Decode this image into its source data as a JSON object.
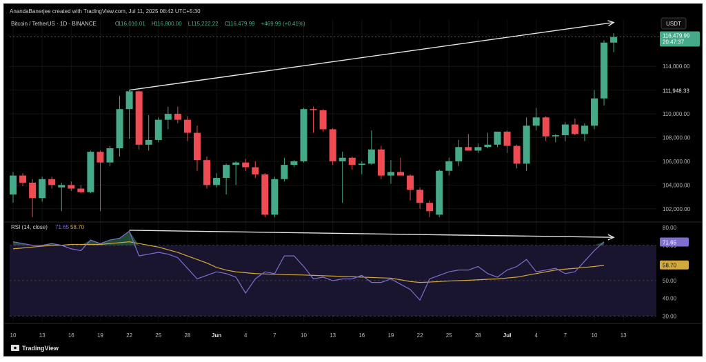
{
  "header": {
    "created_by": "AnandaBanerjee created with TradingView.com, Jul 11, 2025 08:42 UTC+5:30"
  },
  "legend": {
    "symbol": "Bitcoin / TetherUS · 1D · BINANCE",
    "open_label": "O",
    "open": "116,010.01",
    "high_label": "H",
    "high": "116,800.00",
    "low_label": "L",
    "low": "115,222.22",
    "close_label": "C",
    "close": "116,479.99",
    "change": "+469.99 (+0.41%)"
  },
  "price_axis": {
    "currency": "USDT",
    "last_price": "116,479.99",
    "countdown": "20:47:37",
    "marker_price": "111,948.33",
    "ticks": [
      "114,000.00",
      "112,000.00",
      "110,000.00",
      "108,000.00",
      "106,000.00",
      "104,000.00",
      "102,000.00"
    ]
  },
  "rsi_panel": {
    "label": "RSI (14, close)",
    "rsi_value": "71.65",
    "ma_value": "58.70",
    "ticks": [
      "80.00",
      "70.00",
      "60.00",
      "50.00",
      "40.00",
      "30.00"
    ]
  },
  "time_axis": {
    "ticks": [
      "10",
      "13",
      "16",
      "19",
      "22",
      "25",
      "28",
      "Jun",
      "4",
      "7",
      "10",
      "13",
      "16",
      "19",
      "22",
      "25",
      "28",
      "Jul",
      "4",
      "7",
      "10",
      "13"
    ]
  },
  "footer": {
    "brand": "TradingView"
  },
  "colors": {
    "up": "#46a98a",
    "down": "#ee4b52",
    "rsi": "#7e6fd0",
    "rsi_ma": "#d4a93c",
    "background": "#000000"
  },
  "chart_data": {
    "type": "candlestick",
    "y_range": [
      101000,
      117500
    ],
    "rsi_range": [
      27,
      82
    ],
    "candles": [
      {
        "o": 103200,
        "h": 105100,
        "l": 102500,
        "c": 104800
      },
      {
        "o": 104800,
        "h": 105000,
        "l": 103900,
        "c": 104200
      },
      {
        "o": 104200,
        "h": 104500,
        "l": 101300,
        "c": 102900
      },
      {
        "o": 102900,
        "h": 104700,
        "l": 102600,
        "c": 104500
      },
      {
        "o": 104500,
        "h": 104700,
        "l": 103700,
        "c": 104000
      },
      {
        "o": 103800,
        "h": 104200,
        "l": 101800,
        "c": 104000
      },
      {
        "o": 104000,
        "h": 104300,
        "l": 103500,
        "c": 103700
      },
      {
        "o": 103700,
        "h": 104000,
        "l": 103300,
        "c": 103400
      },
      {
        "o": 103400,
        "h": 106900,
        "l": 103300,
        "c": 106800
      },
      {
        "o": 106800,
        "h": 106900,
        "l": 101800,
        "c": 105900
      },
      {
        "o": 105900,
        "h": 107300,
        "l": 105600,
        "c": 107100
      },
      {
        "o": 107100,
        "h": 111500,
        "l": 106400,
        "c": 110400
      },
      {
        "o": 110400,
        "h": 112000,
        "l": 107900,
        "c": 111900
      },
      {
        "o": 111900,
        "h": 111950,
        "l": 107000,
        "c": 107400
      },
      {
        "o": 107400,
        "h": 109900,
        "l": 106900,
        "c": 107800
      },
      {
        "o": 107800,
        "h": 109700,
        "l": 107600,
        "c": 109500
      },
      {
        "o": 109500,
        "h": 110600,
        "l": 108700,
        "c": 110000
      },
      {
        "o": 110000,
        "h": 110600,
        "l": 109200,
        "c": 109500
      },
      {
        "o": 109500,
        "h": 109800,
        "l": 107700,
        "c": 108400
      },
      {
        "o": 108400,
        "h": 109000,
        "l": 105200,
        "c": 106100
      },
      {
        "o": 106100,
        "h": 106400,
        "l": 103700,
        "c": 104000
      },
      {
        "o": 104000,
        "h": 105000,
        "l": 103800,
        "c": 104600
      },
      {
        "o": 104600,
        "h": 105800,
        "l": 103200,
        "c": 105700
      },
      {
        "o": 105700,
        "h": 106000,
        "l": 104000,
        "c": 105900
      },
      {
        "o": 105900,
        "h": 106200,
        "l": 105200,
        "c": 105500
      },
      {
        "o": 105500,
        "h": 106000,
        "l": 104600,
        "c": 104900
      },
      {
        "o": 104900,
        "h": 105000,
        "l": 101300,
        "c": 101500
      },
      {
        "o": 101500,
        "h": 104700,
        "l": 101300,
        "c": 104500
      },
      {
        "o": 104500,
        "h": 106300,
        "l": 104300,
        "c": 105700
      },
      {
        "o": 105700,
        "h": 106100,
        "l": 105500,
        "c": 106000
      },
      {
        "o": 106000,
        "h": 110500,
        "l": 105900,
        "c": 110400
      },
      {
        "o": 110400,
        "h": 110600,
        "l": 108400,
        "c": 110300
      },
      {
        "o": 110300,
        "h": 110400,
        "l": 108500,
        "c": 108700
      },
      {
        "o": 108700,
        "h": 108800,
        "l": 105700,
        "c": 106000
      },
      {
        "o": 106000,
        "h": 106800,
        "l": 102500,
        "c": 106300
      },
      {
        "o": 106300,
        "h": 106400,
        "l": 105300,
        "c": 105700
      },
      {
        "o": 105700,
        "h": 106000,
        "l": 104900,
        "c": 105800
      },
      {
        "o": 105800,
        "h": 108600,
        "l": 105700,
        "c": 107000
      },
      {
        "o": 107000,
        "h": 107300,
        "l": 104500,
        "c": 104800
      },
      {
        "o": 104800,
        "h": 106100,
        "l": 104100,
        "c": 105100
      },
      {
        "o": 105100,
        "h": 106300,
        "l": 104900,
        "c": 104800
      },
      {
        "o": 104800,
        "h": 104900,
        "l": 102700,
        "c": 103600
      },
      {
        "o": 103600,
        "h": 103800,
        "l": 102000,
        "c": 102500
      },
      {
        "o": 102500,
        "h": 102700,
        "l": 101300,
        "c": 101800
      },
      {
        "o": 101500,
        "h": 105300,
        "l": 101300,
        "c": 105200
      },
      {
        "o": 105200,
        "h": 106300,
        "l": 104800,
        "c": 106000
      },
      {
        "o": 106000,
        "h": 107800,
        "l": 105600,
        "c": 107200
      },
      {
        "o": 107200,
        "h": 108300,
        "l": 106900,
        "c": 106900
      },
      {
        "o": 106900,
        "h": 107500,
        "l": 106700,
        "c": 107200
      },
      {
        "o": 107200,
        "h": 108400,
        "l": 107100,
        "c": 107400
      },
      {
        "o": 107400,
        "h": 108500,
        "l": 107200,
        "c": 108500
      },
      {
        "o": 108500,
        "h": 108600,
        "l": 106700,
        "c": 107300
      },
      {
        "o": 107300,
        "h": 107400,
        "l": 105400,
        "c": 105800
      },
      {
        "o": 105800,
        "h": 109700,
        "l": 105200,
        "c": 109000
      },
      {
        "o": 109000,
        "h": 110500,
        "l": 108600,
        "c": 109700
      },
      {
        "o": 109700,
        "h": 109800,
        "l": 107700,
        "c": 108100
      },
      {
        "o": 108100,
        "h": 108300,
        "l": 107600,
        "c": 108200
      },
      {
        "o": 108200,
        "h": 109300,
        "l": 107700,
        "c": 109100
      },
      {
        "o": 109100,
        "h": 109600,
        "l": 108200,
        "c": 108300
      },
      {
        "o": 108300,
        "h": 109200,
        "l": 107700,
        "c": 109000
      },
      {
        "o": 109000,
        "h": 112000,
        "l": 108700,
        "c": 111300
      },
      {
        "o": 111300,
        "h": 116200,
        "l": 110700,
        "c": 116000
      },
      {
        "o": 116000,
        "h": 116800,
        "l": 115200,
        "c": 116480
      }
    ],
    "rsi": [
      72,
      71,
      70,
      70,
      71,
      70,
      68,
      67,
      73,
      71,
      73,
      74,
      78,
      64,
      65,
      66,
      65,
      63,
      57,
      51,
      53,
      55,
      54,
      52,
      43,
      51,
      55,
      54,
      64,
      64,
      58,
      51,
      52,
      50,
      51,
      51,
      53,
      49,
      49,
      51,
      48,
      45,
      39,
      51,
      53,
      55,
      56,
      56,
      58,
      54,
      52,
      56,
      58,
      62,
      55,
      56,
      57,
      54,
      55,
      61,
      67,
      72
    ],
    "rsi_ma": [
      68,
      68.5,
      69,
      69.5,
      70,
      70,
      70.5,
      70.5,
      70.5,
      70.5,
      71,
      71.5,
      72,
      71,
      70,
      69,
      67.5,
      66,
      64,
      62,
      60,
      57.5,
      56,
      55,
      54.5,
      54,
      53.8,
      53.6,
      53.4,
      53.3,
      53.2,
      53,
      52.8,
      52.6,
      52.4,
      52.2,
      52,
      51.8,
      51.6,
      51.4,
      50.5,
      49.5,
      49,
      49.2,
      49.5,
      49.8,
      50,
      50.2,
      50.5,
      50.8,
      51,
      51.5,
      52,
      53,
      54,
      55,
      56,
      56.5,
      57,
      57.5,
      58,
      58.7
    ],
    "annotations": [
      {
        "type": "arrow",
        "panel": "price",
        "from": {
          "candle": 12,
          "value": 112000
        },
        "to": {
          "candle": 62,
          "value": 117700
        }
      },
      {
        "type": "arrow",
        "panel": "rsi",
        "from": {
          "candle": 12,
          "value": 78.5
        },
        "to": {
          "candle": 62,
          "value": 74.5
        }
      }
    ]
  }
}
